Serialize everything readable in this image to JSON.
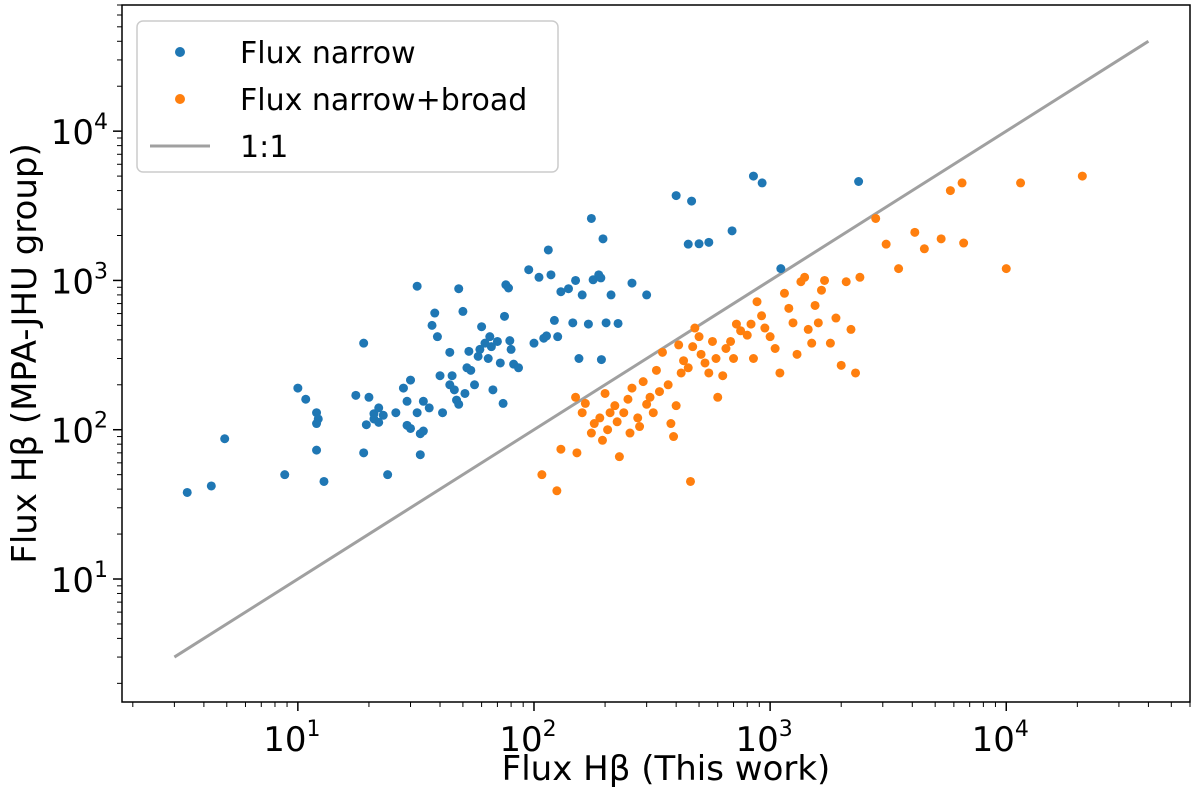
{
  "chart_data": {
    "type": "scatter",
    "title": "",
    "xlabel": "Flux Hβ (This work)",
    "ylabel": "Flux Hβ (MPA-JHU group)",
    "xscale": "log",
    "yscale": "log",
    "xlim": [
      1.8,
      60000
    ],
    "ylim": [
      1.5,
      70000
    ],
    "x_major_ticks": [
      10,
      100,
      1000,
      10000
    ],
    "y_major_ticks": [
      10,
      100,
      1000,
      10000
    ],
    "grid": false,
    "legend_position": "top-left",
    "series": [
      {
        "name": "Flux narrow",
        "kind": "scatter",
        "color": "#1f77b4",
        "points": [
          [
            3.4,
            38
          ],
          [
            4.3,
            42
          ],
          [
            4.9,
            87
          ],
          [
            8.8,
            50
          ],
          [
            10,
            190
          ],
          [
            10.8,
            160
          ],
          [
            12,
            130
          ],
          [
            12.2,
            118
          ],
          [
            12,
            110
          ],
          [
            12,
            73
          ],
          [
            12.9,
            45
          ],
          [
            17.6,
            170
          ],
          [
            19,
            380
          ],
          [
            19.5,
            108
          ],
          [
            19,
            70
          ],
          [
            20,
            165
          ],
          [
            21,
            128
          ],
          [
            21,
            118
          ],
          [
            22,
            112
          ],
          [
            22,
            140
          ],
          [
            23,
            125
          ],
          [
            24,
            50
          ],
          [
            26,
            130
          ],
          [
            28,
            190
          ],
          [
            29,
            155
          ],
          [
            29,
            107
          ],
          [
            30,
            102
          ],
          [
            30,
            215
          ],
          [
            32,
            915
          ],
          [
            32,
            130
          ],
          [
            33,
            94
          ],
          [
            33,
            68
          ],
          [
            34,
            98
          ],
          [
            34,
            155
          ],
          [
            36,
            140
          ],
          [
            37,
            500
          ],
          [
            38,
            605
          ],
          [
            39,
            420
          ],
          [
            40,
            230
          ],
          [
            41,
            130
          ],
          [
            44,
            330
          ],
          [
            44,
            200
          ],
          [
            45,
            230
          ],
          [
            46,
            185
          ],
          [
            47,
            158
          ],
          [
            48,
            148
          ],
          [
            48,
            880
          ],
          [
            50,
            620
          ],
          [
            51,
            175
          ],
          [
            52,
            260
          ],
          [
            53,
            335
          ],
          [
            54,
            250
          ],
          [
            56,
            200
          ],
          [
            58,
            310
          ],
          [
            59,
            345
          ],
          [
            60,
            490
          ],
          [
            62,
            380
          ],
          [
            64,
            300
          ],
          [
            65,
            420
          ],
          [
            66,
            360
          ],
          [
            67,
            185
          ],
          [
            70,
            390
          ],
          [
            72,
            280
          ],
          [
            74,
            150
          ],
          [
            75,
            575
          ],
          [
            76,
            935
          ],
          [
            78,
            890
          ],
          [
            79,
            395
          ],
          [
            80,
            345
          ],
          [
            82,
            275
          ],
          [
            86,
            260
          ],
          [
            95,
            1180
          ],
          [
            100,
            380
          ],
          [
            105,
            1050
          ],
          [
            110,
            410
          ],
          [
            113,
            425
          ],
          [
            115,
            1600
          ],
          [
            118,
            1090
          ],
          [
            122,
            540
          ],
          [
            126,
            420
          ],
          [
            130,
            840
          ],
          [
            140,
            880
          ],
          [
            146,
            520
          ],
          [
            150,
            1000
          ],
          [
            155,
            300
          ],
          [
            160,
            800
          ],
          [
            170,
            510
          ],
          [
            175,
            2600
          ],
          [
            178,
            1010
          ],
          [
            188,
            1090
          ],
          [
            192,
            1040
          ],
          [
            193,
            295
          ],
          [
            196,
            1900
          ],
          [
            202,
            520
          ],
          [
            212,
            800
          ],
          [
            227,
            515
          ],
          [
            260,
            960
          ],
          [
            300,
            800
          ],
          [
            400,
            3700
          ],
          [
            450,
            1750
          ],
          [
            465,
            3400
          ],
          [
            500,
            1760
          ],
          [
            550,
            1800
          ],
          [
            690,
            2150
          ],
          [
            850,
            5000
          ],
          [
            925,
            4500
          ],
          [
            1110,
            1200
          ],
          [
            2370,
            4600
          ]
        ]
      },
      {
        "name": "Flux narrow+broad",
        "kind": "scatter",
        "color": "#ff7f0e",
        "points": [
          [
            108,
            50
          ],
          [
            125,
            39
          ],
          [
            130,
            74
          ],
          [
            150,
            165
          ],
          [
            152,
            70
          ],
          [
            160,
            130
          ],
          [
            165,
            150
          ],
          [
            175,
            95
          ],
          [
            180,
            110
          ],
          [
            190,
            120
          ],
          [
            195,
            85
          ],
          [
            200,
            175
          ],
          [
            205,
            100
          ],
          [
            210,
            130
          ],
          [
            220,
            145
          ],
          [
            225,
            113
          ],
          [
            230,
            66
          ],
          [
            240,
            130
          ],
          [
            250,
            160
          ],
          [
            255,
            95
          ],
          [
            260,
            190
          ],
          [
            275,
            120
          ],
          [
            280,
            105
          ],
          [
            290,
            210
          ],
          [
            300,
            148
          ],
          [
            310,
            165
          ],
          [
            320,
            130
          ],
          [
            330,
            250
          ],
          [
            340,
            180
          ],
          [
            350,
            330
          ],
          [
            370,
            200
          ],
          [
            380,
            110
          ],
          [
            390,
            90
          ],
          [
            400,
            145
          ],
          [
            410,
            370
          ],
          [
            420,
            240
          ],
          [
            430,
            290
          ],
          [
            450,
            260
          ],
          [
            460,
            45
          ],
          [
            470,
            360
          ],
          [
            480,
            480
          ],
          [
            500,
            420
          ],
          [
            510,
            320
          ],
          [
            530,
            280
          ],
          [
            550,
            240
          ],
          [
            570,
            390
          ],
          [
            590,
            300
          ],
          [
            600,
            165
          ],
          [
            630,
            230
          ],
          [
            650,
            350
          ],
          [
            680,
            390
          ],
          [
            700,
            300
          ],
          [
            720,
            510
          ],
          [
            750,
            460
          ],
          [
            800,
            430
          ],
          [
            830,
            510
          ],
          [
            850,
            300
          ],
          [
            880,
            720
          ],
          [
            920,
            580
          ],
          [
            950,
            480
          ],
          [
            1000,
            420
          ],
          [
            1050,
            350
          ],
          [
            1100,
            240
          ],
          [
            1150,
            820
          ],
          [
            1200,
            650
          ],
          [
            1250,
            520
          ],
          [
            1300,
            320
          ],
          [
            1350,
            980
          ],
          [
            1400,
            1050
          ],
          [
            1450,
            470
          ],
          [
            1500,
            380
          ],
          [
            1550,
            680
          ],
          [
            1600,
            520
          ],
          [
            1650,
            860
          ],
          [
            1700,
            1000
          ],
          [
            1800,
            380
          ],
          [
            1900,
            560
          ],
          [
            2000,
            270
          ],
          [
            2100,
            980
          ],
          [
            2200,
            470
          ],
          [
            2300,
            240
          ],
          [
            2400,
            1050
          ],
          [
            2800,
            2600
          ],
          [
            3100,
            1750
          ],
          [
            3500,
            1200
          ],
          [
            4100,
            2100
          ],
          [
            4500,
            1630
          ],
          [
            5300,
            1900
          ],
          [
            5800,
            4000
          ],
          [
            6500,
            4500
          ],
          [
            6600,
            1780
          ],
          [
            10000,
            1200
          ],
          [
            11500,
            4500
          ],
          [
            21000,
            5000
          ]
        ]
      },
      {
        "name": "1:1",
        "kind": "line",
        "color": "#a0a0a0",
        "x": [
          3,
          40000
        ],
        "y": [
          3,
          40000
        ]
      }
    ]
  }
}
